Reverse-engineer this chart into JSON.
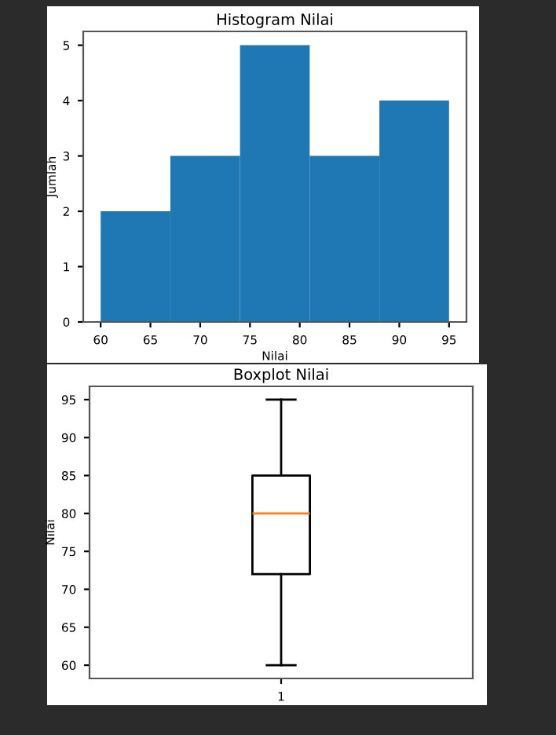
{
  "chart_data": [
    {
      "type": "histogram",
      "title": "Histogram Nilai",
      "xlabel": "Nilai",
      "ylabel": "Jumlah",
      "color": "#1f77b4",
      "bins": [
        60,
        67,
        74,
        81,
        88,
        95
      ],
      "values": [
        2,
        3,
        5,
        3,
        4
      ],
      "xlim": [
        58.25,
        96.75
      ],
      "xticks": [
        60,
        65,
        70,
        75,
        80,
        85,
        90,
        95
      ],
      "ylim": [
        0,
        5.25
      ],
      "yticks": [
        0,
        1,
        2,
        3,
        4,
        5
      ],
      "grid": false
    },
    {
      "type": "box",
      "title": "Boxplot Nilai",
      "ylabel": "Nilai",
      "categories": [
        "1"
      ],
      "boxes": [
        {
          "low": 60,
          "q1": 72,
          "median": 80,
          "q3": 85,
          "high": 95
        }
      ],
      "ylim": [
        58.25,
        96.75
      ],
      "yticks": [
        60,
        65,
        70,
        75,
        80,
        85,
        90,
        95
      ],
      "grid": false
    }
  ]
}
